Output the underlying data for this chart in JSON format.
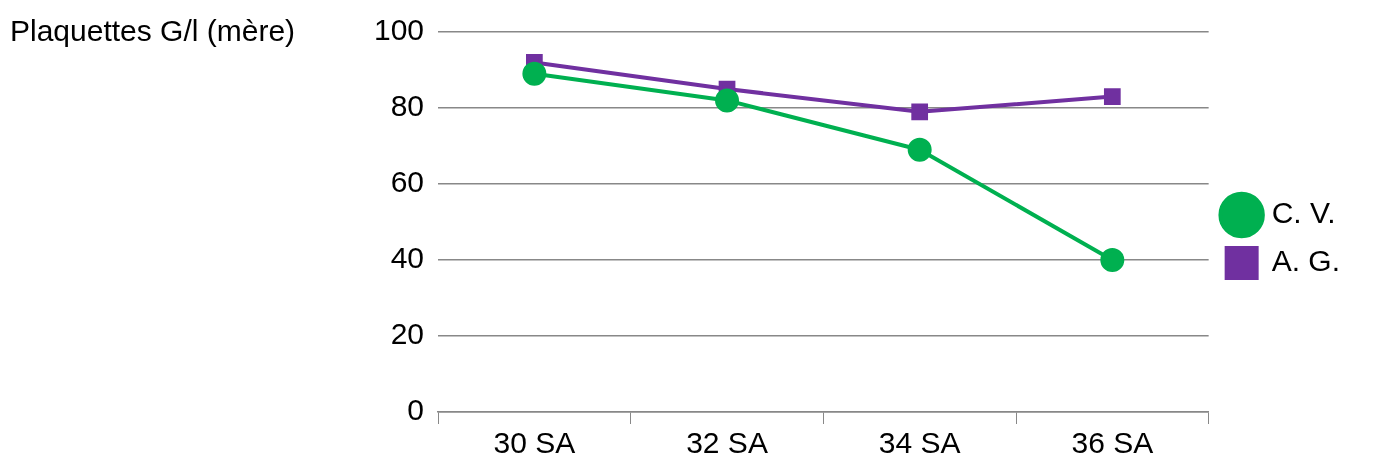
{
  "chart_data": {
    "type": "line",
    "ylabel": "Plaquettes G/l (mère)",
    "categories": [
      "30 SA",
      "32 SA",
      "34 SA",
      "36 SA"
    ],
    "series": [
      {
        "name": "C. V.",
        "color": "#00b050",
        "values": [
          89,
          82,
          69,
          40
        ],
        "marker": "circle"
      },
      {
        "name": "A. G.",
        "color": "#7030a0",
        "values": [
          92,
          85,
          79,
          83
        ],
        "marker": "square"
      }
    ],
    "ylim": [
      0,
      100
    ],
    "yticks": [
      0,
      20,
      40,
      60,
      80,
      100
    ],
    "grid": "y",
    "legend": "right",
    "line_style": "solid"
  }
}
